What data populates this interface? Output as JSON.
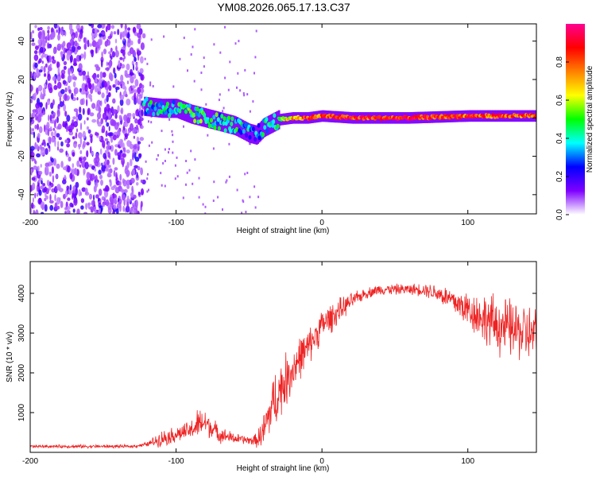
{
  "title": "YM08.2026.065.17.13.C37",
  "chart_data": [
    {
      "type": "heatmap",
      "xlabel": "Height of straight line (km)",
      "ylabel": "Frequency (Hz)",
      "xlim": [
        -200,
        147
      ],
      "ylim": [
        -50,
        49
      ],
      "xticks": [
        -200,
        -100,
        0,
        100
      ],
      "yticks": [
        -40,
        -20,
        0,
        20,
        40
      ],
      "colorbar": {
        "label": "Normalized spectral amplitude",
        "range": [
          0,
          1
        ],
        "ticks": [
          0.0,
          0.2,
          0.4,
          0.6,
          0.8
        ],
        "tick_labels": [
          "0.0",
          "0.2",
          "0.4",
          "0.6",
          "0.8"
        ],
        "colors": [
          "#ffffff",
          "#7f00ff",
          "#0000ff",
          "#00ffff",
          "#00ff00",
          "#ffff00",
          "#ff8000",
          "#ff0000",
          "#ff0090"
        ]
      },
      "noise_region": {
        "x_range": [
          -200,
          -122
        ],
        "freq_range": [
          -50,
          49
        ],
        "amplitude": 0.15
      },
      "ridge": {
        "x": [
          -122,
          -110,
          -100,
          -90,
          -80,
          -70,
          -60,
          -50,
          -45,
          -40,
          -30,
          -20,
          -10,
          0,
          20,
          60,
          100,
          147
        ],
        "freq": [
          6,
          5,
          5,
          2,
          0,
          -2,
          -4,
          -8,
          -9,
          -5,
          -1,
          0,
          0,
          1,
          0,
          0,
          1,
          1
        ],
        "amplitude": [
          0.35,
          0.4,
          0.4,
          0.45,
          0.45,
          0.4,
          0.4,
          0.3,
          0.3,
          0.35,
          0.5,
          0.7,
          0.8,
          0.8,
          0.85,
          0.85,
          0.8,
          0.8
        ]
      }
    },
    {
      "type": "line",
      "xlabel": "Height of straight line (km)",
      "ylabel": "SNR (10 * v/v)",
      "xlim": [
        -200,
        147
      ],
      "ylim": [
        0,
        4800
      ],
      "xticks": [
        -200,
        -100,
        0,
        100
      ],
      "yticks": [
        1000,
        2000,
        3000,
        4000
      ],
      "series": [
        {
          "name": "SNR",
          "color": "#ee2222",
          "x": [
            -200,
            -160,
            -130,
            -120,
            -110,
            -100,
            -90,
            -85,
            -80,
            -75,
            -70,
            -60,
            -50,
            -45,
            -40,
            -35,
            -30,
            -25,
            -20,
            -15,
            -10,
            -5,
            0,
            10,
            20,
            30,
            40,
            50,
            60,
            70,
            80,
            90,
            100,
            110,
            120,
            130,
            140,
            147
          ],
          "values": [
            150,
            150,
            150,
            200,
            350,
            450,
            550,
            700,
            750,
            600,
            450,
            350,
            300,
            300,
            500,
            1100,
            1500,
            1800,
            2100,
            2400,
            2600,
            2900,
            3200,
            3500,
            3800,
            4000,
            4100,
            4100,
            4100,
            4100,
            4000,
            3800,
            3600,
            3400,
            3200,
            3100,
            3000,
            2900
          ],
          "spread": [
            60,
            60,
            60,
            80,
            300,
            300,
            350,
            600,
            500,
            400,
            300,
            200,
            150,
            250,
            700,
            1000,
            1100,
            1000,
            900,
            800,
            700,
            600,
            600,
            500,
            300,
            200,
            200,
            200,
            200,
            250,
            350,
            500,
            700,
            900,
            1100,
            1100,
            1100,
            1100
          ]
        }
      ]
    }
  ]
}
